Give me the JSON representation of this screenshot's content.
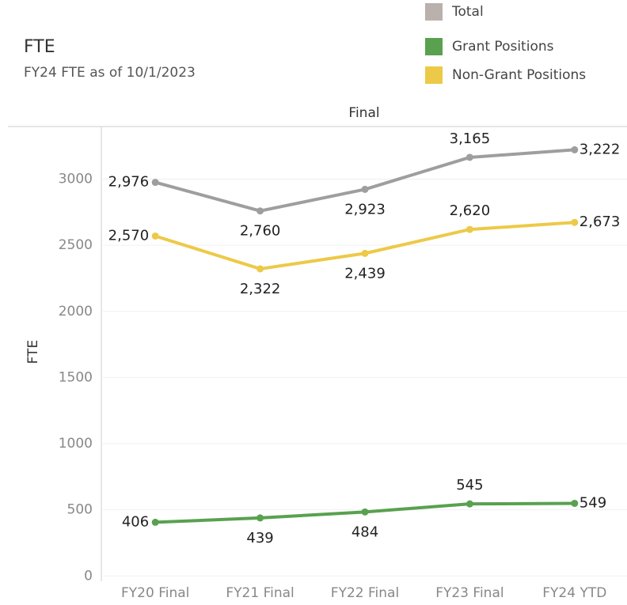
{
  "chart_data": {
    "type": "line",
    "title": "FTE",
    "subtitle": "FY24 FTE as of 10/1/2023",
    "header": "Final",
    "y_label": "FTE",
    "categories": [
      "FY20 Final",
      "FY21 Final",
      "FY22 Final",
      "FY23 Final",
      "FY24 YTD"
    ],
    "series": [
      {
        "name": "Total",
        "color": "#9e9e9e",
        "legend_color": "#bab0ac",
        "values": [
          2976,
          2760,
          2923,
          3165,
          3222
        ],
        "value_labels": [
          "2,976",
          "2,760",
          "2,923",
          "3,165",
          "3,222"
        ]
      },
      {
        "name": "Grant Positions",
        "color": "#59a14f",
        "legend_color": "#59a14f",
        "values": [
          406,
          439,
          484,
          545,
          549
        ],
        "value_labels": [
          "406",
          "439",
          "484",
          "545",
          "549"
        ]
      },
      {
        "name": "Non-Grant Positions",
        "color": "#edc948",
        "legend_color": "#edc948",
        "values": [
          2570,
          2322,
          2439,
          2620,
          2673
        ],
        "value_labels": [
          "2,570",
          "2,322",
          "2,439",
          "2,620",
          "2,673"
        ]
      }
    ],
    "ylim": [
      -40,
      3380
    ],
    "yticks": [
      0,
      500,
      1000,
      1500,
      2000,
      2500,
      3000
    ],
    "grid": true,
    "legend": "top-right"
  }
}
